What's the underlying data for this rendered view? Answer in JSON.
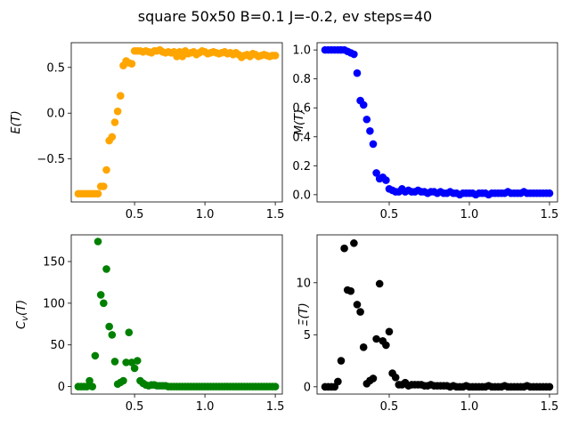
{
  "figure": {
    "title": "square 50x50  B=0.1 J=-0.2, ev steps=40"
  },
  "chart_data": [
    {
      "type": "scatter",
      "ylabel": "E(T)",
      "color": "#ffa500",
      "xlim": [
        0.05,
        1.55
      ],
      "ylim": [
        -0.97,
        0.77
      ],
      "xticks": [
        0.5,
        1.0,
        1.5
      ],
      "yticks": [
        -0.5,
        0.0,
        0.5
      ],
      "xticklabels": [
        "0.5",
        "1.0",
        "1.5"
      ],
      "yticklabels": [
        "−0.5",
        "0.0",
        "0.5"
      ],
      "x": [
        0.1,
        0.12,
        0.14,
        0.16,
        0.18,
        0.2,
        0.22,
        0.24,
        0.26,
        0.28,
        0.3,
        0.32,
        0.34,
        0.36,
        0.38,
        0.4,
        0.42,
        0.44,
        0.46,
        0.48,
        0.5,
        0.52,
        0.54,
        0.56,
        0.58,
        0.6,
        0.62,
        0.64,
        0.66,
        0.68,
        0.7,
        0.72,
        0.74,
        0.76,
        0.78,
        0.8,
        0.82,
        0.84,
        0.86,
        0.88,
        0.9,
        0.92,
        0.94,
        0.96,
        0.98,
        1.0,
        1.02,
        1.04,
        1.06,
        1.08,
        1.1,
        1.12,
        1.14,
        1.16,
        1.18,
        1.2,
        1.22,
        1.24,
        1.26,
        1.28,
        1.3,
        1.32,
        1.34,
        1.36,
        1.38,
        1.4,
        1.42,
        1.44,
        1.46,
        1.48,
        1.5
      ],
      "y": [
        -0.88,
        -0.88,
        -0.88,
        -0.88,
        -0.88,
        -0.88,
        -0.88,
        -0.88,
        -0.8,
        -0.8,
        -0.62,
        -0.3,
        -0.26,
        -0.1,
        0.02,
        0.19,
        0.52,
        0.57,
        0.55,
        0.54,
        0.68,
        0.68,
        0.68,
        0.67,
        0.68,
        0.67,
        0.66,
        0.68,
        0.68,
        0.69,
        0.67,
        0.66,
        0.67,
        0.66,
        0.67,
        0.62,
        0.67,
        0.62,
        0.68,
        0.65,
        0.66,
        0.67,
        0.64,
        0.66,
        0.68,
        0.67,
        0.65,
        0.66,
        0.67,
        0.66,
        0.65,
        0.66,
        0.67,
        0.65,
        0.66,
        0.64,
        0.66,
        0.64,
        0.61,
        0.63,
        0.64,
        0.62,
        0.65,
        0.64,
        0.62,
        0.63,
        0.64,
        0.63,
        0.62,
        0.63,
        0.63
      ]
    },
    {
      "type": "scatter",
      "ylabel": "M(T)",
      "color": "#0000ff",
      "xlim": [
        0.05,
        1.55
      ],
      "ylim": [
        -0.05,
        1.05
      ],
      "xticks": [
        0.5,
        1.0,
        1.5
      ],
      "yticks": [
        0.0,
        0.2,
        0.4,
        0.6,
        0.8,
        1.0
      ],
      "xticklabels": [
        "0.5",
        "1.0",
        "1.5"
      ],
      "yticklabels": [
        "0.0",
        "0.2",
        "0.4",
        "0.6",
        "0.8",
        "1.0"
      ],
      "x": [
        0.1,
        0.12,
        0.14,
        0.16,
        0.18,
        0.2,
        0.22,
        0.24,
        0.26,
        0.28,
        0.3,
        0.32,
        0.34,
        0.36,
        0.38,
        0.4,
        0.42,
        0.44,
        0.46,
        0.48,
        0.5,
        0.52,
        0.54,
        0.56,
        0.58,
        0.6,
        0.62,
        0.64,
        0.66,
        0.68,
        0.7,
        0.72,
        0.74,
        0.76,
        0.78,
        0.8,
        0.82,
        0.84,
        0.86,
        0.88,
        0.9,
        0.92,
        0.94,
        0.96,
        0.98,
        1.0,
        1.02,
        1.04,
        1.06,
        1.08,
        1.1,
        1.12,
        1.14,
        1.16,
        1.18,
        1.2,
        1.22,
        1.24,
        1.26,
        1.28,
        1.3,
        1.32,
        1.34,
        1.36,
        1.38,
        1.4,
        1.42,
        1.44,
        1.46,
        1.48,
        1.5
      ],
      "y": [
        1.0,
        1.0,
        1.0,
        1.0,
        1.0,
        1.0,
        1.0,
        0.99,
        0.98,
        0.97,
        0.84,
        0.65,
        0.62,
        0.52,
        0.44,
        0.35,
        0.15,
        0.11,
        0.12,
        0.1,
        0.04,
        0.03,
        0.02,
        0.02,
        0.04,
        0.02,
        0.03,
        0.02,
        0.02,
        0.03,
        0.02,
        0.02,
        0.01,
        0.02,
        0.02,
        0.01,
        0.02,
        0.01,
        0.01,
        0.02,
        0.01,
        0.01,
        0.0,
        0.01,
        0.01,
        0.01,
        0.01,
        0.0,
        0.01,
        0.01,
        0.01,
        0.0,
        0.01,
        0.01,
        0.01,
        0.01,
        0.01,
        0.02,
        0.01,
        0.01,
        0.01,
        0.01,
        0.02,
        0.01,
        0.01,
        0.01,
        0.01,
        0.01,
        0.01,
        0.01,
        0.01
      ]
    },
    {
      "type": "scatter",
      "ylabel": "C_v(T)",
      "color": "#008000",
      "xlim": [
        0.05,
        1.55
      ],
      "ylim": [
        -9,
        182
      ],
      "xticks": [
        0.5,
        1.0,
        1.5
      ],
      "yticks": [
        0,
        50,
        100,
        150
      ],
      "xticklabels": [
        "0.5",
        "1.0",
        "1.5"
      ],
      "yticklabels": [
        "0",
        "50",
        "100",
        "150"
      ],
      "x": [
        0.1,
        0.12,
        0.14,
        0.16,
        0.18,
        0.2,
        0.22,
        0.24,
        0.26,
        0.28,
        0.3,
        0.32,
        0.34,
        0.36,
        0.38,
        0.4,
        0.42,
        0.44,
        0.46,
        0.48,
        0.5,
        0.52,
        0.54,
        0.56,
        0.58,
        0.6,
        0.62,
        0.64,
        0.66,
        0.68,
        0.7,
        0.72,
        0.74,
        0.76,
        0.78,
        0.8,
        0.82,
        0.84,
        0.86,
        0.88,
        0.9,
        0.92,
        0.94,
        0.96,
        0.98,
        1.0,
        1.02,
        1.04,
        1.06,
        1.08,
        1.1,
        1.12,
        1.14,
        1.16,
        1.18,
        1.2,
        1.22,
        1.24,
        1.26,
        1.28,
        1.3,
        1.32,
        1.34,
        1.36,
        1.38,
        1.4,
        1.42,
        1.44,
        1.46,
        1.48,
        1.5
      ],
      "y": [
        0,
        0,
        0,
        0,
        7,
        0,
        37,
        174,
        110,
        100,
        141,
        72,
        62,
        30,
        3,
        5,
        7,
        29,
        65,
        29,
        22,
        31,
        7,
        4,
        2,
        1,
        2,
        2,
        1,
        1,
        1,
        1,
        0,
        0,
        0,
        0,
        0,
        0,
        0,
        0,
        0,
        0,
        0,
        0,
        0,
        0,
        0,
        0,
        0,
        0,
        0,
        0,
        0,
        0,
        0,
        0,
        0,
        0,
        0,
        0,
        0,
        0,
        0,
        0,
        0,
        0,
        0,
        0,
        0,
        0,
        0
      ]
    },
    {
      "type": "scatter",
      "ylabel": "Ξ(T)",
      "color": "#000000",
      "xlim": [
        0.05,
        1.55
      ],
      "ylim": [
        -0.7,
        14.6
      ],
      "xticks": [
        0.5,
        1.0,
        1.5
      ],
      "yticks": [
        0,
        5,
        10
      ],
      "xticklabels": [
        "0.5",
        "1.0",
        "1.5"
      ],
      "yticklabels": [
        "0",
        "5",
        "10"
      ],
      "x": [
        0.1,
        0.12,
        0.14,
        0.16,
        0.18,
        0.2,
        0.22,
        0.24,
        0.26,
        0.28,
        0.3,
        0.32,
        0.34,
        0.36,
        0.38,
        0.4,
        0.42,
        0.44,
        0.46,
        0.48,
        0.5,
        0.52,
        0.54,
        0.56,
        0.58,
        0.6,
        0.62,
        0.64,
        0.66,
        0.68,
        0.7,
        0.72,
        0.74,
        0.76,
        0.78,
        0.8,
        0.82,
        0.84,
        0.86,
        0.88,
        0.9,
        0.92,
        0.94,
        0.96,
        0.98,
        1.0,
        1.02,
        1.04,
        1.06,
        1.08,
        1.1,
        1.12,
        1.14,
        1.16,
        1.18,
        1.2,
        1.22,
        1.24,
        1.26,
        1.28,
        1.3,
        1.32,
        1.34,
        1.36,
        1.38,
        1.4,
        1.42,
        1.44,
        1.46,
        1.48,
        1.5
      ],
      "y": [
        0,
        0,
        0,
        0,
        0.5,
        2.5,
        13.3,
        9.3,
        9.2,
        13.8,
        7.9,
        7.2,
        3.8,
        0.3,
        0.6,
        0.8,
        4.6,
        9.9,
        4.4,
        4.0,
        5.3,
        1.3,
        0.9,
        0.2,
        0.2,
        0.4,
        0.1,
        0.2,
        0.2,
        0.2,
        0.2,
        0.1,
        0.1,
        0.2,
        0.1,
        0.1,
        0.1,
        0.1,
        0.1,
        0,
        0.1,
        0,
        0,
        0,
        0.1,
        0,
        0,
        0,
        0,
        0,
        0,
        0.1,
        0,
        0,
        0,
        0,
        0.1,
        0,
        0,
        0,
        0,
        0,
        0,
        0.1,
        0,
        0,
        0,
        0,
        0,
        0,
        0
      ]
    }
  ]
}
